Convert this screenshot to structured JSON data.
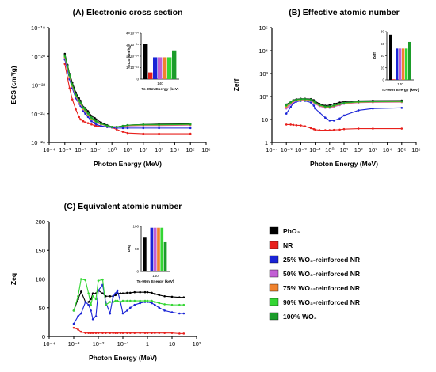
{
  "legend": {
    "items": [
      {
        "id": "pbo2",
        "label": "PbO₂",
        "color": "#000000"
      },
      {
        "id": "nr",
        "label": "NR",
        "color": "#e8201c"
      },
      {
        "id": "wo25",
        "label": "25% WO₃-reinforced NR",
        "color": "#1a24d6"
      },
      {
        "id": "wo50",
        "label": "50% WO₃-reinforced NR",
        "color": "#c25fd4"
      },
      {
        "id": "wo75",
        "label": "75% WO₃-reinforced NR",
        "color": "#f0822e"
      },
      {
        "id": "wo90",
        "label": "90% WO₃-reinforced NR",
        "color": "#33d633"
      },
      {
        "id": "wo100",
        "label": "100% WO₃",
        "color": "#1b9c2a"
      }
    ]
  },
  "chart_data": [
    {
      "id": "A",
      "type": "line",
      "title": "(A) Electronic cross section",
      "xlabel": "Photon Energy (MeV)",
      "ylabel": "ECS (cm²/g)",
      "x_scale": "log",
      "y_scale": "log",
      "xlim": [
        0.0001,
        1000000
      ],
      "ylim": [
        1e-26,
        1e-18
      ],
      "x_ticks": [
        "10⁻⁴",
        "10⁻³",
        "10⁻²",
        "10⁻¹",
        "10⁰",
        "10¹",
        "10²",
        "10³",
        "10⁴",
        "10⁵",
        "10⁶"
      ],
      "y_ticks": [
        "10⁻¹⁸",
        "10⁻²⁰",
        "10⁻²²",
        "10⁻²⁴",
        "10⁻²⁶"
      ],
      "x": [
        0.001,
        0.0015,
        0.002,
        0.003,
        0.005,
        0.008,
        0.01,
        0.015,
        0.02,
        0.03,
        0.05,
        0.08,
        0.1,
        0.2,
        0.5,
        1,
        2,
        5,
        10,
        100,
        1000,
        100000
      ],
      "series": [
        {
          "name": "PbO₂",
          "color": "#000000",
          "values": [
            1.5e-20,
            2.5e-21,
            6e-22,
            1.5e-22,
            3e-23,
            1.2e-23,
            8e-24,
            3e-24,
            2.5e-24,
            1.5e-24,
            7e-25,
            5e-25,
            4e-25,
            2.5e-25,
            1.6e-25,
            1.2e-25,
            1.2e-25,
            1.4e-25,
            1.6e-25,
            1.8e-25,
            1.9e-25,
            2e-25
          ]
        },
        {
          "name": "NR",
          "color": "#e8201c",
          "values": [
            3e-21,
            3e-22,
            6e-23,
            1e-23,
            2e-24,
            6e-25,
            4e-25,
            3e-25,
            2.5e-25,
            2.2e-25,
            1.8e-25,
            1.5e-25,
            1.4e-25,
            1.3e-25,
            1.2e-25,
            1.1e-25,
            8e-26,
            5.5e-26,
            4.5e-26,
            4e-26,
            4e-26,
            4e-26
          ]
        },
        {
          "name": "25% WO₃-reinforced NR",
          "color": "#1a24d6",
          "values": [
            6e-21,
            1e-21,
            2.5e-22,
            6e-23,
            1.2e-23,
            5e-24,
            3.5e-24,
            1.5e-24,
            1e-24,
            6e-25,
            3e-25,
            2.2e-25,
            1.8e-25,
            1.4e-25,
            1.2e-25,
            1.1e-25,
            1e-25,
            1e-25,
            1e-25,
            1e-25,
            1e-25,
            1e-25
          ]
        },
        {
          "name": "50% WO₃-reinforced NR",
          "color": "#c25fd4",
          "values": [
            8e-21,
            1.5e-21,
            3.5e-22,
            8e-23,
            1.6e-23,
            6e-24,
            4.5e-24,
            2e-24,
            1.4e-24,
            8e-25,
            4e-25,
            3e-25,
            2.5e-25,
            1.8e-25,
            1.4e-25,
            1.2e-25,
            1.2e-25,
            1.3e-25,
            1.4e-25,
            1.5e-25,
            1.5e-25,
            1.6e-25
          ]
        },
        {
          "name": "75% WO₃-reinforced NR",
          "color": "#f0822e",
          "values": [
            9e-21,
            1.8e-21,
            4e-22,
            9e-23,
            1.8e-23,
            7e-24,
            5e-24,
            2.2e-24,
            1.6e-24,
            9e-25,
            4.5e-25,
            3.2e-25,
            2.6e-25,
            1.9e-25,
            1.4e-25,
            1.2e-25,
            1.2e-25,
            1.3e-25,
            1.5e-25,
            1.6e-25,
            1.6e-25,
            1.7e-25
          ]
        },
        {
          "name": "90% WO₃-reinforced NR",
          "color": "#33d633",
          "values": [
            1e-20,
            2e-21,
            4.5e-22,
            1e-22,
            2e-23,
            8e-24,
            5.5e-24,
            2.5e-24,
            1.8e-24,
            1e-24,
            5e-25,
            3.5e-25,
            2.8e-25,
            2e-25,
            1.4e-25,
            1.2e-25,
            1.2e-25,
            1.4e-25,
            1.6e-25,
            1.7e-25,
            1.7e-25,
            1.8e-25
          ]
        },
        {
          "name": "100% WO₃",
          "color": "#1b9c2a",
          "values": [
            1.2e-20,
            2.2e-21,
            5e-22,
            1.1e-22,
            2.2e-23,
            9e-24,
            6e-24,
            2.8e-24,
            2e-24,
            1.1e-24,
            5.5e-25,
            3.8e-25,
            3e-25,
            2.1e-25,
            1.5e-25,
            1.2e-25,
            1.2e-25,
            1.4e-25,
            1.6e-25,
            1.8e-25,
            1.8e-25,
            1.9e-25
          ]
        }
      ],
      "inset": {
        "type": "bar",
        "xlabel": "Tc-99m Energy (keV)",
        "ylabel": "ECS (cm²/g)",
        "category": "140",
        "ylim": [
          0,
          4e-24
        ],
        "y_ticks": [
          "4×10⁻²⁴",
          "3×10⁻²⁴",
          "2×10⁻²⁴",
          "1×10⁻²⁴",
          "0"
        ],
        "values": [
          3.05e-24,
          5.8e-25,
          1.9e-24,
          1.9e-24,
          1.9e-24,
          1.9e-24,
          2.5e-24
        ]
      }
    },
    {
      "id": "B",
      "type": "line",
      "title": "(B) Effective atomic number",
      "xlabel": "Photon Energy (MeV)",
      "ylabel": "Zeff",
      "x_scale": "log",
      "y_scale": "log",
      "xlim": [
        0.0001,
        1000000
      ],
      "ylim": [
        1,
        100000
      ],
      "x_ticks": [
        "10⁻⁴",
        "10⁻³",
        "10⁻²",
        "10⁻¹",
        "10⁰",
        "10¹",
        "10²",
        "10³",
        "10⁴",
        "10⁵",
        "10⁶"
      ],
      "y_ticks": [
        "10⁵",
        "10⁴",
        "10³",
        "10²",
        "10",
        "1"
      ],
      "x": [
        0.001,
        0.002,
        0.003,
        0.005,
        0.01,
        0.02,
        0.05,
        0.08,
        0.1,
        0.2,
        0.5,
        1,
        2,
        5,
        10,
        100,
        1000,
        100000
      ],
      "series": [
        {
          "name": "PbO₂",
          "color": "#000000",
          "values": [
            45,
            58,
            70,
            76,
            80,
            80,
            78,
            70,
            62,
            48,
            40,
            42,
            48,
            55,
            60,
            65,
            66,
            67
          ]
        },
        {
          "name": "NR",
          "color": "#e8201c",
          "values": [
            6,
            6,
            5.8,
            5.6,
            5.5,
            5,
            4.2,
            3.8,
            3.6,
            3.4,
            3.4,
            3.4,
            3.5,
            3.6,
            3.8,
            4,
            4,
            4
          ]
        },
        {
          "name": "25% WO₃-reinforced NR",
          "color": "#1a24d6",
          "values": [
            18,
            35,
            50,
            60,
            65,
            65,
            55,
            40,
            30,
            20,
            12,
            9,
            9,
            11,
            15,
            25,
            30,
            32
          ]
        },
        {
          "name": "50% WO₃-reinforced NR",
          "color": "#c25fd4",
          "values": [
            30,
            45,
            58,
            65,
            70,
            70,
            65,
            55,
            48,
            38,
            32,
            32,
            36,
            42,
            48,
            54,
            56,
            57
          ]
        },
        {
          "name": "75% WO₃-reinforced NR",
          "color": "#f0822e",
          "values": [
            35,
            50,
            62,
            68,
            73,
            73,
            68,
            58,
            50,
            40,
            34,
            34,
            38,
            45,
            50,
            56,
            58,
            59
          ]
        },
        {
          "name": "90% WO₃-reinforced NR",
          "color": "#33d633",
          "values": [
            40,
            55,
            66,
            72,
            76,
            76,
            72,
            62,
            54,
            42,
            36,
            36,
            40,
            47,
            52,
            58,
            60,
            61
          ]
        },
        {
          "name": "100% WO₃",
          "color": "#1b9c2a",
          "values": [
            42,
            57,
            68,
            74,
            78,
            78,
            74,
            64,
            56,
            44,
            37,
            37,
            41,
            48,
            54,
            60,
            62,
            63
          ]
        }
      ],
      "inset": {
        "type": "bar",
        "xlabel": "Tc-99m Energy (keV)",
        "ylabel": "Zeff",
        "category": "140",
        "ylim": [
          0,
          80
        ],
        "y_ticks": [
          "80",
          "60",
          "40",
          "20",
          "0"
        ],
        "values": [
          75,
          1,
          52,
          52,
          52,
          52,
          63
        ]
      }
    },
    {
      "id": "C",
      "type": "line",
      "title": "(C) Equivalent atomic number",
      "xlabel": "Photon Energy (MeV)",
      "ylabel": "Zeq",
      "x_scale": "log",
      "y_scale": "linear",
      "xlim": [
        0.0001,
        100
      ],
      "ylim": [
        0,
        200
      ],
      "x_ticks": [
        "10⁻⁴",
        "10⁻³",
        "10⁻²",
        "10⁻¹",
        "1",
        "10",
        "10²"
      ],
      "y_ticks": [
        "200",
        "150",
        "100",
        "50",
        "0"
      ],
      "x": [
        0.001,
        0.0015,
        0.002,
        0.003,
        0.004,
        0.005,
        0.006,
        0.008,
        0.01,
        0.015,
        0.02,
        0.03,
        0.04,
        0.05,
        0.06,
        0.08,
        0.1,
        0.15,
        0.2,
        0.3,
        0.5,
        0.8,
        1,
        1.5,
        2,
        3,
        5,
        10,
        20,
        30
      ],
      "series": [
        {
          "name": "PbO₂",
          "color": "#000000",
          "values": [
            45,
            65,
            78,
            60,
            60,
            65,
            75,
            75,
            80,
            75,
            70,
            70,
            70,
            72,
            75,
            75,
            75,
            76,
            76,
            77,
            77,
            77,
            77,
            76,
            74,
            72,
            70,
            69,
            68,
            68
          ]
        },
        {
          "name": "NR",
          "color": "#e8201c",
          "values": [
            15,
            12,
            8,
            6,
            6,
            6,
            6,
            6,
            6,
            6,
            6,
            6,
            6,
            6,
            6,
            6,
            6,
            6,
            6,
            6,
            6,
            6,
            6,
            6,
            6,
            6,
            6,
            6,
            5,
            5
          ]
        },
        {
          "name": "25% WO₃-reinforced NR",
          "color": "#1a24d6",
          "values": [
            22,
            35,
            40,
            60,
            55,
            45,
            30,
            35,
            80,
            90,
            60,
            40,
            70,
            75,
            80,
            60,
            40,
            45,
            50,
            55,
            58,
            60,
            60,
            58,
            55,
            50,
            45,
            42,
            40,
            40
          ]
        },
        {
          "name": "90% WO₃-reinforced NR",
          "color": "#33d633",
          "values": [
            45,
            70,
            100,
            98,
            75,
            55,
            70,
            65,
            97,
            99,
            55,
            60,
            60,
            62,
            62,
            60,
            62,
            62,
            62,
            62,
            62,
            62,
            62,
            62,
            60,
            58,
            56,
            55,
            55,
            55
          ]
        }
      ],
      "inset": {
        "type": "bar",
        "xlabel": "Tc-99m Energy (keV)",
        "ylabel": "Zeq",
        "category": "140",
        "ylim": [
          0,
          100
        ],
        "y_ticks": [
          "100",
          "50",
          "0"
        ],
        "values": [
          75,
          1,
          97,
          97,
          97,
          97,
          65
        ]
      }
    }
  ]
}
